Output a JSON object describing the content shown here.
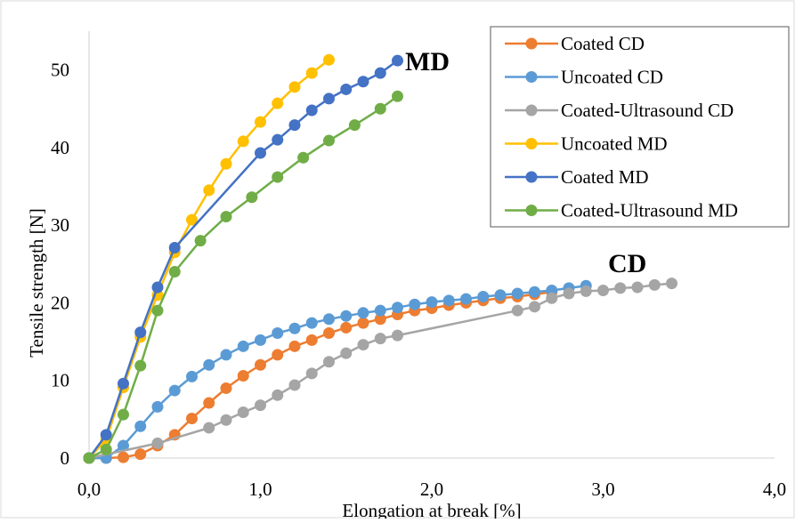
{
  "chart_data": {
    "type": "scatter",
    "mode": "lines+markers",
    "title": "",
    "xlabel": "Elongation at break [%]",
    "ylabel": "Tensile strength [N]",
    "xlim": [
      0,
      4
    ],
    "ylim": [
      0,
      55
    ],
    "x_ticks": [
      "0,0",
      "1,0",
      "2,0",
      "3,0",
      "4,0"
    ],
    "y_ticks": [
      "0",
      "10",
      "20",
      "30",
      "40",
      "50"
    ],
    "grid": "none",
    "legend_position": "top-right",
    "annotations": [
      "MD",
      "CD"
    ],
    "series": [
      {
        "name": "Coated CD",
        "color": "#ED7D31",
        "x": [
          0,
          0.1,
          0.2,
          0.3,
          0.4,
          0.5,
          0.6,
          0.7,
          0.8,
          0.9,
          1.0,
          1.1,
          1.2,
          1.3,
          1.4,
          1.5,
          1.6,
          1.7,
          1.8,
          1.9,
          2.0,
          2.1,
          2.2,
          2.3,
          2.4,
          2.5,
          2.6,
          2.7
        ],
        "y": [
          0,
          0,
          0.1,
          0.5,
          1.6,
          3.0,
          5.1,
          7.1,
          9.0,
          10.6,
          12.0,
          13.3,
          14.4,
          15.2,
          16.1,
          16.8,
          17.4,
          17.9,
          18.5,
          19.0,
          19.3,
          19.7,
          20.0,
          20.3,
          20.6,
          20.8,
          21.1,
          21.4
        ]
      },
      {
        "name": "Uncoated CD",
        "color": "#5B9BD5",
        "x": [
          0,
          0.1,
          0.2,
          0.3,
          0.4,
          0.5,
          0.6,
          0.7,
          0.8,
          0.9,
          1.0,
          1.1,
          1.2,
          1.3,
          1.4,
          1.5,
          1.6,
          1.7,
          1.8,
          1.9,
          2.0,
          2.1,
          2.2,
          2.3,
          2.4,
          2.5,
          2.6,
          2.7,
          2.8,
          2.9
        ],
        "y": [
          0,
          0,
          1.6,
          4.1,
          6.6,
          8.7,
          10.5,
          12.0,
          13.3,
          14.4,
          15.2,
          16.1,
          16.7,
          17.4,
          17.9,
          18.3,
          18.7,
          19.0,
          19.4,
          19.8,
          20.1,
          20.3,
          20.5,
          20.8,
          21.0,
          21.2,
          21.4,
          21.6,
          21.9,
          22.2
        ]
      },
      {
        "name": "Coated-Ultrasound CD",
        "color": "#A5A5A5",
        "x": [
          0,
          0.4,
          0.7,
          0.8,
          0.9,
          1.0,
          1.1,
          1.2,
          1.3,
          1.4,
          1.5,
          1.6,
          1.7,
          1.8,
          2.5,
          2.6,
          2.7,
          2.8,
          2.9,
          3.0,
          3.1,
          3.2,
          3.3,
          3.4
        ],
        "y": [
          0,
          1.9,
          3.9,
          4.9,
          5.9,
          6.8,
          8.1,
          9.4,
          10.9,
          12.4,
          13.5,
          14.6,
          15.4,
          15.8,
          19.0,
          19.5,
          20.6,
          21.2,
          21.5,
          21.6,
          21.9,
          22.0,
          22.3,
          22.5
        ]
      },
      {
        "name": "Uncoated MD",
        "color": "#FFC000",
        "x": [
          0,
          0.1,
          0.2,
          0.3,
          0.4,
          0.5,
          0.6,
          0.7,
          0.8,
          0.9,
          1.0,
          1.1,
          1.2,
          1.3,
          1.4
        ],
        "y": [
          0,
          2.4,
          9.1,
          15.6,
          21.0,
          26.5,
          30.7,
          34.5,
          37.9,
          40.8,
          43.3,
          45.7,
          47.8,
          49.6,
          51.3
        ]
      },
      {
        "name": "Coated MD",
        "color": "#4472C4",
        "x": [
          0,
          0.1,
          0.2,
          0.3,
          0.4,
          0.5,
          1.0,
          1.1,
          1.2,
          1.3,
          1.4,
          1.5,
          1.6,
          1.7,
          1.8
        ],
        "y": [
          0,
          3.0,
          9.6,
          16.2,
          22.0,
          27.1,
          39.3,
          41.0,
          42.9,
          44.8,
          46.3,
          47.5,
          48.5,
          49.6,
          51.2
        ]
      },
      {
        "name": "Coated-Ultrasound MD",
        "color": "#70AD47",
        "x": [
          0,
          0.1,
          0.2,
          0.3,
          0.4,
          0.5,
          0.65,
          0.8,
          0.95,
          1.1,
          1.25,
          1.4,
          1.55,
          1.7,
          1.8
        ],
        "y": [
          0,
          1.1,
          5.6,
          11.9,
          19.0,
          24.0,
          28.0,
          31.1,
          33.6,
          36.2,
          38.7,
          40.9,
          42.9,
          45.0,
          46.6
        ]
      }
    ]
  }
}
